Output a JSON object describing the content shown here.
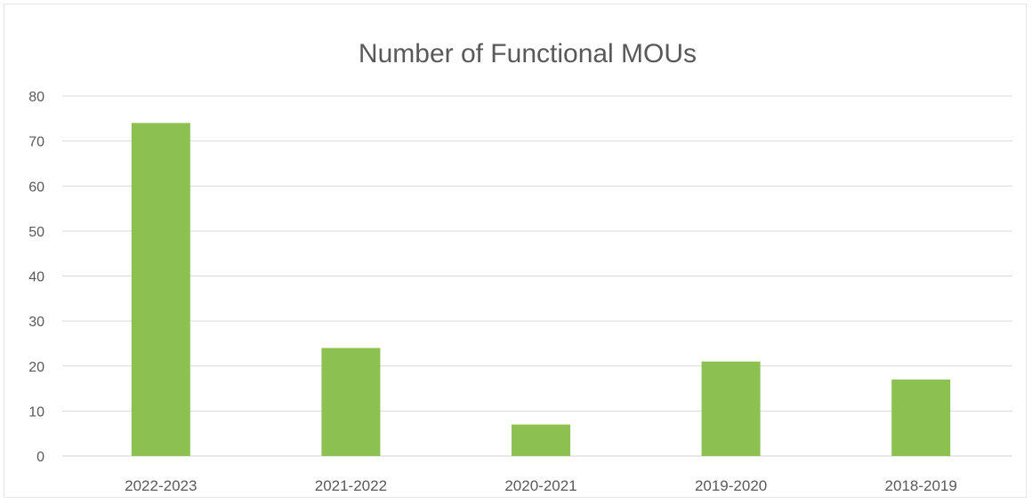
{
  "chart_data": {
    "type": "bar",
    "title": "Number of Functional MOUs",
    "categories": [
      "2022-2023",
      "2021-2022",
      "2020-2021",
      "2019-2020",
      "2018-2019"
    ],
    "values": [
      74,
      24,
      7,
      21,
      17
    ],
    "xlabel": "",
    "ylabel": "",
    "ylim": [
      0,
      80
    ],
    "yticks": [
      0,
      10,
      20,
      30,
      40,
      50,
      60,
      70,
      80
    ],
    "grid": true,
    "legend": "none",
    "bar_color": "#8cc152",
    "grid_color": "#d9d9d9",
    "text_color": "#595959"
  }
}
